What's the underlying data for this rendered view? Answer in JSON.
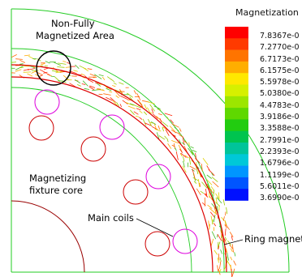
{
  "legend": {
    "title": "Magnetization",
    "values": [
      "7.8367e-0",
      "7.2770e-0",
      "6.7173e-0",
      "6.1575e-0",
      "5.5978e-0",
      "5.0380e-0",
      "4.4783e-0",
      "3.9186e-0",
      "3.3588e-0",
      "2.7991e-0",
      "2.2393e-0",
      "1.6796e-0",
      "1.1199e-0",
      "5.6011e-0",
      "3.6990e-0"
    ],
    "colors": [
      "#ff0000",
      "#ff3a00",
      "#ff7400",
      "#ffae00",
      "#ffe800",
      "#d6f000",
      "#9ce600",
      "#5fd800",
      "#22cc10",
      "#00c44f",
      "#00c49a",
      "#00c8d8",
      "#0096ff",
      "#0055ff",
      "#0010ff"
    ]
  },
  "annotations": {
    "non_fully_line1": "Non-Fully",
    "non_fully_line2": "Magnetized Area",
    "fixture_line1": "Magnetizing",
    "fixture_line2": "fixture core",
    "main_coils": "Main coils",
    "ring_magnet": "Ring magnet"
  },
  "colors": {
    "outline": "#22cc22",
    "ring": "#dd0000",
    "coil_red": "#cc0000",
    "coil_magenta": "#dd00dd",
    "core_arc": "#990000"
  }
}
